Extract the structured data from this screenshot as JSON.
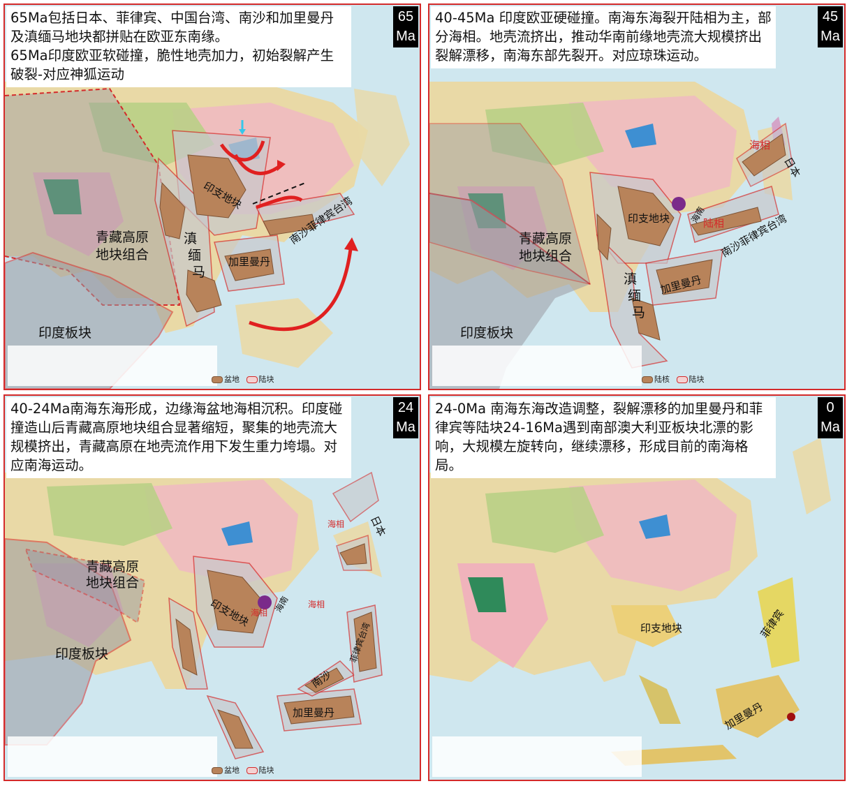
{
  "colors": {
    "frame": "#d42a2a",
    "sea": "#cfe7ef",
    "block_fill": "#b8835a",
    "block_outline": "#d42a2a",
    "grey_zone": "#9a9aa2"
  },
  "legend_keys": {
    "basin": "盆地",
    "basin_alt": "陆核",
    "block": "陆块"
  },
  "panels": [
    {
      "age_num": "65",
      "age_unit": "Ma",
      "caption": "65Ma包括日本、菲律宾、中国台湾、南沙和加里曼丹及滇缅马地块都拼贴在欧亚东南缘。\n65Ma印度欧亚软碰撞，脆性地壳加力，初始裂解产生破裂-对应神狐运动",
      "labels": {
        "tibet": "青藏高原",
        "tibet2": "地块组合",
        "indochina": "印支地块",
        "dianmian": "滇",
        "dianmian2": "缅",
        "dianmian3": "马",
        "kalimantan": "加里曼丹",
        "nansha": "南沙菲律宾台湾",
        "indian_plate": "印度板块"
      }
    },
    {
      "age_num": "45",
      "age_unit": "Ma",
      "caption": "40-45Ma 印度欧亚硬碰撞。南海东海裂开陆相为主，部分海相。地壳流挤出，推动华南前缘地壳流大规模挤出裂解漂移，南海东部先裂开。对应琼珠运动。",
      "labels": {
        "tibet": "青藏高原",
        "tibet2": "地块组合",
        "indochina": "印支地块",
        "hainan": "海南",
        "continental": "陆相",
        "marine": "海相",
        "japan": "日本",
        "dianmian": "滇",
        "dianmian2": "缅",
        "dianmian3": "马",
        "kalimantan": "加里曼丹",
        "nansha": "南沙菲律宾台湾",
        "indian_plate": "印度板块"
      }
    },
    {
      "age_num": "24",
      "age_unit": "Ma",
      "caption": "40-24Ma南海东海形成，边缘海盆地海相沉积。印度碰撞造山后青藏高原地块组合显著缩短，聚集的地壳流大规模挤出，青藏高原在地壳流作用下发生重力垮塌。对应南海运动。",
      "labels": {
        "tibet": "青藏高原",
        "tibet2": "地块组合",
        "indian_plate": "印度板块",
        "indochina": "印支地块",
        "hainan": "海南",
        "marine1": "海相",
        "marine2": "海相",
        "marine3": "海相",
        "japan": "日本",
        "nansha": "南沙",
        "philippines_taiwan": "菲律宾台湾",
        "kalimantan": "加里曼丹"
      }
    },
    {
      "age_num": "0",
      "age_unit": "Ma",
      "caption": "24-0Ma 南海东海改造调整，裂解漂移的加里曼丹和菲律宾等陆块24-16Ma遇到南部澳大利亚板块北漂的影响，大规模左旋转向，继续漂移，形成目前的南海格局。",
      "labels": {
        "indochina": "印支地块",
        "philippines": "菲律宾",
        "kalimantan": "加里曼丹"
      }
    }
  ]
}
